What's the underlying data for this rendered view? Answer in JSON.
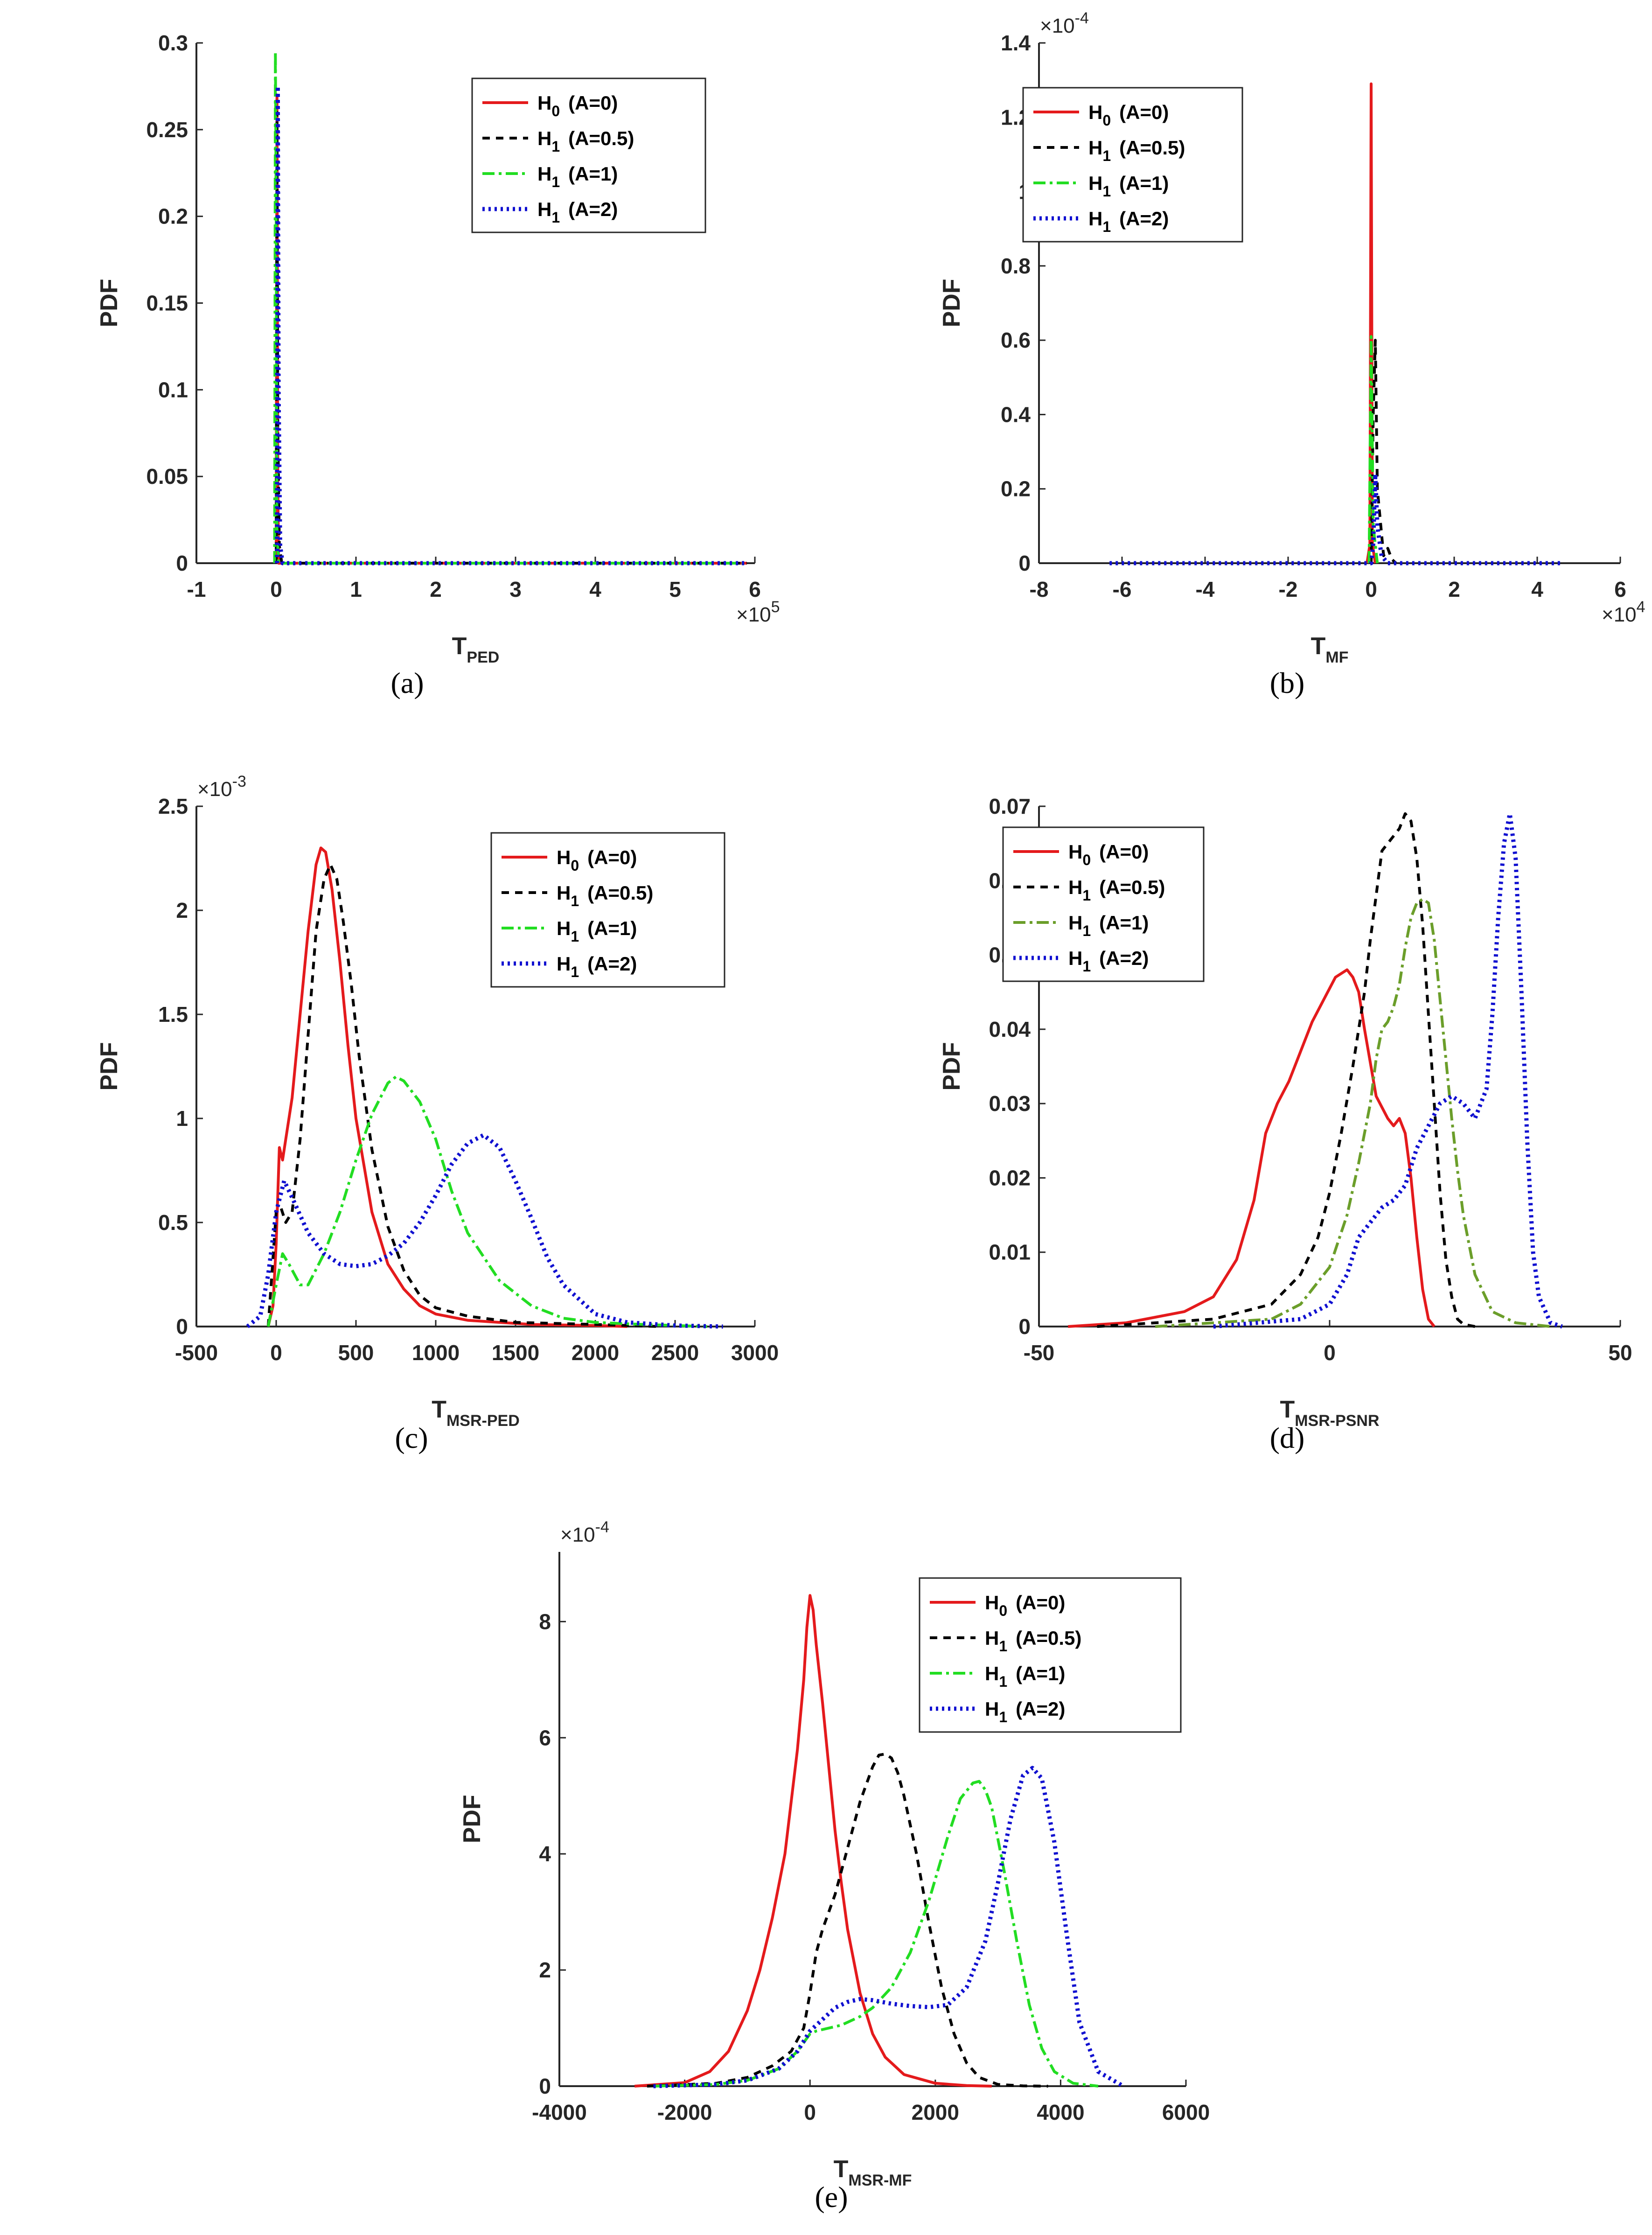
{
  "figure": {
    "legend": [
      "H0 (A=0)",
      "H1 (A=0.5)",
      "H1 (A=1)",
      "H1 (A=2)"
    ],
    "series_colors": [
      "#e41a1c",
      "#000000",
      "#22dd22",
      "#1010d0"
    ]
  },
  "chart_data": [
    {
      "id": "a",
      "type": "line",
      "caption": "(a)",
      "xlabel": "T",
      "xlabel_sub": "PED",
      "ylabel": "PDF",
      "x_exponent": "×10",
      "x_exponent_power": "5",
      "y_exponent": "",
      "y_exponent_power": "",
      "xlim": [
        -1,
        6
      ],
      "ylim": [
        0,
        0.3
      ],
      "xticks": [
        -1,
        0,
        1,
        2,
        3,
        4,
        5,
        6
      ],
      "yticks": [
        0,
        0.05,
        0.1,
        0.15,
        0.2,
        0.25,
        0.3
      ],
      "legend_position": "top-right",
      "series": [
        {
          "name": "H0 (A=0)",
          "x": [
            0,
            0.01,
            0.02,
            0.03,
            0.06,
            5.9
          ],
          "y": [
            0,
            0.27,
            0.05,
            0,
            0,
            0
          ]
        },
        {
          "name": "H1 (A=0.5)",
          "x": [
            0,
            0.01,
            0.02,
            0.04,
            0.07,
            5.9
          ],
          "y": [
            0,
            0.26,
            0.08,
            0.01,
            0,
            0
          ]
        },
        {
          "name": "H1 (A=1)",
          "x": [
            -0.02,
            -0.01,
            0,
            0.01,
            0.03,
            5.9
          ],
          "y": [
            0,
            0.295,
            0.2,
            0.02,
            0,
            0
          ]
        },
        {
          "name": "H1 (A=2)",
          "x": [
            0.01,
            0.02,
            0.03,
            0.05,
            0.08,
            5.9
          ],
          "y": [
            0,
            0.275,
            0.1,
            0.01,
            0,
            0
          ]
        }
      ]
    },
    {
      "id": "b",
      "type": "line",
      "caption": "(b)",
      "xlabel": "T",
      "xlabel_sub": "MF",
      "ylabel": "PDF",
      "x_exponent": "×10",
      "x_exponent_power": "4",
      "y_exponent": "×10",
      "y_exponent_power": "-4",
      "xlim": [
        -8,
        6
      ],
      "ylim": [
        0,
        1.4
      ],
      "xticks": [
        -8,
        -6,
        -4,
        -2,
        0,
        2,
        4,
        6
      ],
      "yticks": [
        0,
        0.2,
        0.4,
        0.6,
        0.8,
        1,
        1.2,
        1.4
      ],
      "legend_position": "top-left",
      "series": [
        {
          "name": "H0 (A=0)",
          "x": [
            -0.1,
            -0.03,
            0,
            0.03,
            0.1
          ],
          "y": [
            0,
            0.05,
            1.29,
            0.05,
            0
          ]
        },
        {
          "name": "H1 (A=0.5)",
          "x": [
            0.0,
            0.05,
            0.1,
            0.15,
            0.3,
            0.4,
            0.5,
            0.6
          ],
          "y": [
            0,
            0.4,
            0.6,
            0.2,
            0.02,
            0.04,
            0.01,
            0
          ]
        },
        {
          "name": "H1 (A=1)",
          "x": [
            -0.05,
            0,
            0.05,
            0.15
          ],
          "y": [
            0,
            0.61,
            0.1,
            0
          ]
        },
        {
          "name": "H1 (A=2)",
          "x": [
            -6.3,
            -3,
            0,
            0.05,
            0.1,
            0.15,
            0.25,
            0.4,
            2,
            4.6
          ],
          "y": [
            0,
            0,
            0,
            0.05,
            0.24,
            0.1,
            0.02,
            0,
            0,
            0
          ]
        }
      ]
    },
    {
      "id": "c",
      "type": "line",
      "caption": "(c)",
      "xlabel": "T",
      "xlabel_sub": "MSR-PED",
      "ylabel": "PDF",
      "x_exponent": "",
      "x_exponent_power": "",
      "y_exponent": "×10",
      "y_exponent_power": "-3",
      "xlim": [
        -500,
        3000
      ],
      "ylim": [
        0,
        2.5
      ],
      "xticks": [
        -500,
        0,
        500,
        1000,
        1500,
        2000,
        2500,
        3000
      ],
      "yticks": [
        0,
        0.5,
        1,
        1.5,
        2,
        2.5
      ],
      "legend_position": "top-right",
      "series": [
        {
          "name": "H0 (A=0)",
          "x": [
            -50,
            -20,
            0,
            20,
            40,
            60,
            100,
            150,
            200,
            250,
            280,
            310,
            350,
            400,
            450,
            500,
            600,
            700,
            800,
            900,
            1000,
            1200,
            1400,
            1600,
            2000,
            2200
          ],
          "y": [
            0,
            0.1,
            0.4,
            0.86,
            0.8,
            0.9,
            1.1,
            1.5,
            1.9,
            2.22,
            2.3,
            2.28,
            2.1,
            1.75,
            1.35,
            1.0,
            0.55,
            0.3,
            0.18,
            0.1,
            0.06,
            0.03,
            0.02,
            0.01,
            0.005,
            0
          ]
        },
        {
          "name": "H1 (A=0.5)",
          "x": [
            -50,
            0,
            30,
            60,
            100,
            150,
            200,
            250,
            300,
            340,
            380,
            420,
            470,
            520,
            600,
            700,
            800,
            900,
            1000,
            1200,
            1500,
            2000,
            2400
          ],
          "y": [
            0,
            0.55,
            0.57,
            0.5,
            0.55,
            0.9,
            1.4,
            1.9,
            2.15,
            2.22,
            2.15,
            1.95,
            1.65,
            1.3,
            0.85,
            0.48,
            0.27,
            0.15,
            0.09,
            0.05,
            0.02,
            0.01,
            0
          ]
        },
        {
          "name": "H1 (A=1)",
          "x": [
            -50,
            0,
            40,
            80,
            150,
            200,
            300,
            400,
            500,
            600,
            700,
            750,
            800,
            900,
            1000,
            1100,
            1200,
            1400,
            1600,
            1800,
            2000,
            2300,
            2700
          ],
          "y": [
            0,
            0.2,
            0.35,
            0.3,
            0.2,
            0.2,
            0.35,
            0.55,
            0.8,
            1.02,
            1.17,
            1.2,
            1.18,
            1.08,
            0.9,
            0.65,
            0.45,
            0.22,
            0.1,
            0.04,
            0.02,
            0.01,
            0
          ]
        },
        {
          "name": "H1 (A=2)",
          "x": [
            -180,
            -100,
            -50,
            0,
            50,
            100,
            200,
            300,
            400,
            500,
            600,
            700,
            800,
            900,
            1000,
            1100,
            1200,
            1300,
            1400,
            1500,
            1600,
            1700,
            1800,
            2000,
            2200,
            2500,
            2800
          ],
          "y": [
            0,
            0.05,
            0.25,
            0.55,
            0.7,
            0.62,
            0.45,
            0.35,
            0.3,
            0.29,
            0.3,
            0.34,
            0.4,
            0.5,
            0.63,
            0.78,
            0.88,
            0.92,
            0.86,
            0.7,
            0.52,
            0.33,
            0.2,
            0.06,
            0.02,
            0.005,
            0
          ]
        }
      ]
    },
    {
      "id": "d",
      "type": "line",
      "caption": "(d)",
      "xlabel": "T",
      "xlabel_sub": "MSR-PSNR",
      "ylabel": "PDF",
      "x_exponent": "",
      "x_exponent_power": "",
      "y_exponent": "",
      "y_exponent_power": "",
      "xlim": [
        -50,
        50
      ],
      "ylim": [
        0,
        0.07
      ],
      "xticks": [
        -50,
        0,
        50
      ],
      "yticks": [
        0,
        0.01,
        0.02,
        0.03,
        0.04,
        0.05,
        0.06,
        0.07
      ],
      "legend_position": "top-left",
      "series": [
        {
          "name": "H0 (A=0)",
          "x": [
            -45,
            -35,
            -25,
            -20,
            -16,
            -13,
            -11,
            -9,
            -7,
            -5,
            -3,
            -1,
            1,
            3,
            4,
            5,
            6,
            8,
            10,
            11,
            12,
            13,
            14,
            15,
            16,
            17,
            18
          ],
          "y": [
            0,
            0.0005,
            0.002,
            0.004,
            0.009,
            0.017,
            0.026,
            0.03,
            0.033,
            0.037,
            0.041,
            0.044,
            0.047,
            0.048,
            0.047,
            0.045,
            0.04,
            0.031,
            0.028,
            0.027,
            0.028,
            0.026,
            0.02,
            0.012,
            0.005,
            0.001,
            0
          ]
        },
        {
          "name": "H1 (A=0.5)",
          "x": [
            -40,
            -20,
            -10,
            -5,
            -2,
            0,
            2,
            4,
            6,
            7,
            8,
            9,
            10,
            11,
            12,
            13,
            14,
            15,
            16,
            17,
            18,
            19,
            20,
            21,
            22,
            23,
            25
          ],
          "y": [
            0,
            0.001,
            0.003,
            0.007,
            0.012,
            0.018,
            0.026,
            0.035,
            0.045,
            0.052,
            0.058,
            0.064,
            0.065,
            0.066,
            0.067,
            0.069,
            0.068,
            0.063,
            0.054,
            0.042,
            0.03,
            0.018,
            0.009,
            0.004,
            0.001,
            0.0003,
            0
          ]
        },
        {
          "name": "H1 (A=1)",
          "x": [
            -30,
            -10,
            -5,
            0,
            3,
            5,
            7,
            8,
            9,
            10,
            11,
            12,
            13,
            14,
            15,
            16,
            17,
            18,
            19,
            20,
            21,
            22,
            23,
            25,
            28,
            32,
            38
          ],
          "y": [
            0,
            0.001,
            0.003,
            0.008,
            0.015,
            0.022,
            0.03,
            0.036,
            0.04,
            0.041,
            0.043,
            0.046,
            0.051,
            0.055,
            0.057,
            0.0575,
            0.057,
            0.052,
            0.044,
            0.036,
            0.028,
            0.021,
            0.015,
            0.007,
            0.002,
            0.0005,
            0
          ]
        },
        {
          "name": "H1 (A=2)",
          "x": [
            -20,
            -5,
            0,
            3,
            5,
            7,
            9,
            11,
            13,
            15,
            17,
            19,
            21,
            23,
            25,
            27,
            28,
            29,
            30,
            31,
            32,
            33,
            34,
            35,
            36,
            38,
            40
          ],
          "y": [
            0,
            0.001,
            0.003,
            0.007,
            0.012,
            0.014,
            0.016,
            0.017,
            0.019,
            0.024,
            0.027,
            0.03,
            0.031,
            0.03,
            0.028,
            0.032,
            0.042,
            0.055,
            0.065,
            0.069,
            0.063,
            0.045,
            0.025,
            0.01,
            0.004,
            0.0005,
            0
          ]
        }
      ]
    },
    {
      "id": "e",
      "type": "line",
      "caption": "(e)",
      "xlabel": "T",
      "xlabel_sub": "MSR-MF",
      "ylabel": "PDF",
      "x_exponent": "",
      "x_exponent_power": "",
      "y_exponent": "×10",
      "y_exponent_power": "-4",
      "xlim": [
        -4000,
        6000
      ],
      "ylim": [
        0,
        9.2
      ],
      "xticks": [
        -4000,
        -2000,
        0,
        2000,
        4000,
        6000
      ],
      "yticks": [
        0,
        2,
        4,
        6,
        8
      ],
      "legend_position": "top-right",
      "series": [
        {
          "name": "H0 (A=0)",
          "x": [
            -2800,
            -2000,
            -1600,
            -1300,
            -1000,
            -800,
            -600,
            -400,
            -300,
            -200,
            -100,
            -50,
            0,
            50,
            100,
            200,
            300,
            400,
            500,
            600,
            800,
            1000,
            1200,
            1500,
            2000,
            2500,
            2900
          ],
          "y": [
            0,
            0.06,
            0.25,
            0.6,
            1.3,
            2.0,
            2.9,
            4.0,
            4.9,
            5.8,
            7.0,
            7.9,
            8.45,
            8.2,
            7.6,
            6.6,
            5.5,
            4.4,
            3.5,
            2.7,
            1.6,
            0.9,
            0.5,
            0.2,
            0.05,
            0.01,
            0
          ]
        },
        {
          "name": "H1 (A=0.5)",
          "x": [
            -2600,
            -1500,
            -1000,
            -600,
            -300,
            -100,
            0,
            100,
            200,
            400,
            600,
            800,
            1000,
            1100,
            1200,
            1300,
            1400,
            1500,
            1700,
            1900,
            2100,
            2300,
            2500,
            2700,
            3000,
            3400,
            3800
          ],
          "y": [
            0,
            0.05,
            0.15,
            0.35,
            0.6,
            1.0,
            1.6,
            2.3,
            2.7,
            3.3,
            4.1,
            4.9,
            5.5,
            5.7,
            5.72,
            5.65,
            5.4,
            5.0,
            4.0,
            2.8,
            1.7,
            0.9,
            0.4,
            0.15,
            0.03,
            0.005,
            0
          ]
        },
        {
          "name": "H1 (A=1)",
          "x": [
            -2500,
            -1500,
            -1000,
            -500,
            -200,
            0,
            100,
            300,
            500,
            800,
            1000,
            1300,
            1600,
            1900,
            2200,
            2400,
            2600,
            2700,
            2800,
            2900,
            3100,
            3300,
            3500,
            3700,
            3900,
            4200,
            4600
          ],
          "y": [
            0,
            0.03,
            0.1,
            0.3,
            0.6,
            0.9,
            0.95,
            1.0,
            1.05,
            1.2,
            1.35,
            1.7,
            2.3,
            3.2,
            4.3,
            4.95,
            5.22,
            5.25,
            5.1,
            4.8,
            3.7,
            2.5,
            1.4,
            0.65,
            0.25,
            0.05,
            0
          ]
        },
        {
          "name": "H1 (A=2)",
          "x": [
            -2500,
            -1500,
            -1000,
            -500,
            -200,
            0,
            200,
            400,
            600,
            800,
            1000,
            1300,
            1600,
            1900,
            2200,
            2500,
            2800,
            3000,
            3200,
            3400,
            3550,
            3700,
            3900,
            4100,
            4300,
            4600,
            5000
          ],
          "y": [
            0,
            0.03,
            0.1,
            0.3,
            0.6,
            0.95,
            1.15,
            1.35,
            1.45,
            1.5,
            1.48,
            1.42,
            1.38,
            1.36,
            1.4,
            1.7,
            2.5,
            3.5,
            4.6,
            5.35,
            5.48,
            5.3,
            4.2,
            2.6,
            1.1,
            0.25,
            0
          ]
        }
      ]
    }
  ]
}
